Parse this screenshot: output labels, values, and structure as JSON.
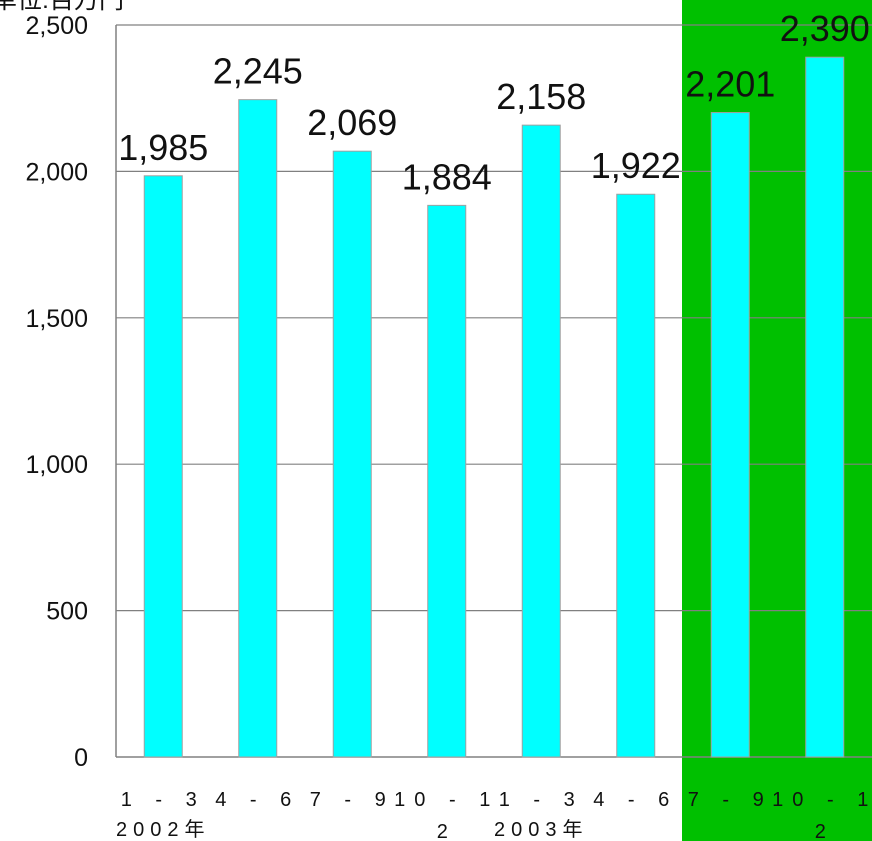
{
  "chart_data": {
    "type": "bar",
    "unit_label": "単位:百万円",
    "categories": [
      "1 - 3",
      "4 - 6",
      "7 - 9",
      "10 - 1",
      "1 - 3",
      "4 - 6",
      "7 - 9",
      "10 - 1"
    ],
    "category_wrap": [
      "",
      "",
      "",
      "2",
      "",
      "",
      "",
      "2"
    ],
    "year_labels": [
      "2002年",
      "2003年"
    ],
    "values": [
      1985,
      2245,
      2069,
      1884,
      2158,
      1922,
      2201,
      2390
    ],
    "value_labels": [
      "1,985",
      "2,245",
      "2,069",
      "1,884",
      "2,158",
      "1,922",
      "2,201",
      "2,390"
    ],
    "highlighted_categories": [
      6,
      7
    ],
    "ylim": [
      0,
      2500
    ],
    "yticks": [
      0,
      500,
      1000,
      1500,
      2000,
      2500
    ],
    "ytick_labels": [
      "0",
      "500",
      "1,000",
      "1,500",
      "2,000",
      "2,500"
    ],
    "grid": true,
    "colors": {
      "bar": "#00ffff",
      "bar_stroke": "#a0a0a0",
      "highlight_bg": "#00c000",
      "grid": "#808080",
      "axis": "#808080"
    }
  }
}
